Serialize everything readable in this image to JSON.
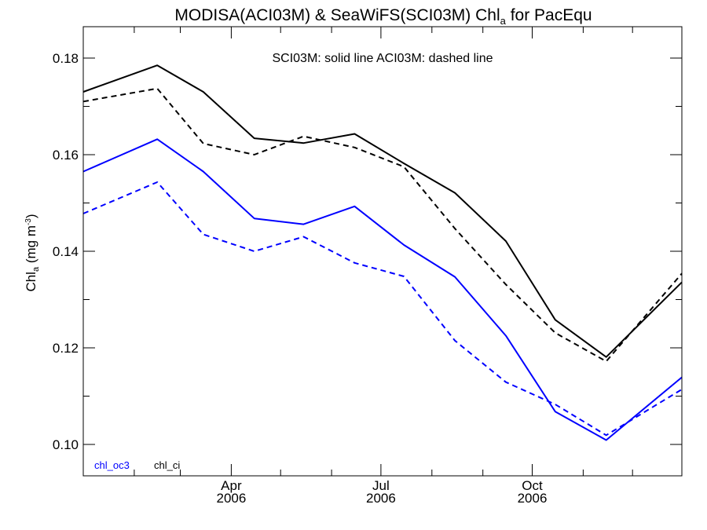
{
  "chart_data": {
    "type": "line",
    "title": {
      "main": "MODISA(ACI03M) & SeaWiFS(SCI03M)  Chl",
      "sub": "a",
      "suffix": " for PacEqu"
    },
    "ylabel": {
      "main": "Chl",
      "sub": "a",
      "units_pre": " (mg m",
      "units_sup": "-3",
      "units_post": ")"
    },
    "annotation": "SCI03M: solid line   ACI03M: dashed line",
    "x_range": [
      "2006-01-01",
      "2006-12-31"
    ],
    "ylim": [
      0.0935,
      0.1865
    ],
    "y_ticks": [
      "0.10",
      "0.12",
      "0.14",
      "0.16",
      "0.18"
    ],
    "y_tick_values": [
      0.1,
      0.12,
      0.14,
      0.16,
      0.18
    ],
    "x_major_ticks": [
      {
        "date": "2006-04-01",
        "month": "Apr",
        "year": "2006"
      },
      {
        "date": "2006-07-01",
        "month": "Jul",
        "year": "2006"
      },
      {
        "date": "2006-10-01",
        "month": "Oct",
        "year": "2006"
      }
    ],
    "x_dates": [
      "2006-01-01",
      "2006-02-15",
      "2006-03-15",
      "2006-04-15",
      "2006-05-15",
      "2006-06-15",
      "2006-07-15",
      "2006-08-15",
      "2006-09-15",
      "2006-10-15",
      "2006-11-15",
      "2006-12-31"
    ],
    "series": [
      {
        "name": "chl_ci",
        "instrument": "SCI03M",
        "style": "solid",
        "color": "#000000",
        "values": [
          0.173,
          0.1785,
          0.173,
          0.1634,
          0.1624,
          0.1643,
          0.1582,
          0.1521,
          0.1421,
          0.1258,
          0.1181,
          0.1336
        ]
      },
      {
        "name": "chl_ci",
        "instrument": "ACI03M",
        "style": "dashed",
        "color": "#000000",
        "values": [
          0.171,
          0.1737,
          0.1623,
          0.16,
          0.1638,
          0.1615,
          0.1575,
          0.1447,
          0.1331,
          0.1231,
          0.1172,
          0.1354
        ]
      },
      {
        "name": "chl_oc3",
        "instrument": "SCI03M",
        "style": "solid",
        "color": "#0000ff",
        "values": [
          0.1565,
          0.1632,
          0.1565,
          0.1468,
          0.1456,
          0.1493,
          0.1413,
          0.1347,
          0.1225,
          0.1068,
          0.1009,
          0.1139
        ]
      },
      {
        "name": "chl_oc3",
        "instrument": "ACI03M",
        "style": "dashed",
        "color": "#0000ff",
        "values": [
          0.1478,
          0.1543,
          0.1435,
          0.14,
          0.143,
          0.1376,
          0.1348,
          0.1215,
          0.1129,
          0.1083,
          0.1019,
          0.1114
        ]
      }
    ],
    "legend": [
      {
        "label": "chl_oc3",
        "color": "#0000ff"
      },
      {
        "label": "chl_ci",
        "color": "#000000"
      }
    ],
    "legend_position": "bottom-left",
    "grid": false
  }
}
